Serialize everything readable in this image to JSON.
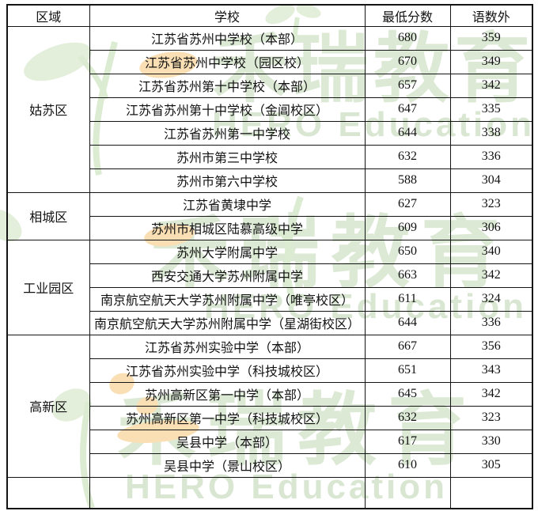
{
  "chart_data": {
    "type": "table",
    "columns": [
      "区域",
      "学校",
      "最低分数",
      "语数外"
    ],
    "groups": [
      {
        "region": "姑苏区",
        "rows": [
          [
            "江苏省苏州中学校（本部）",
            "680",
            "359"
          ],
          [
            "江苏省苏州中学校（园区校）",
            "670",
            "349"
          ],
          [
            "江苏省苏州第十中学校（本部）",
            "657",
            "342"
          ],
          [
            "江苏省苏州第十中学校（金阊校区）",
            "647",
            "335"
          ],
          [
            "江苏省苏州第一中学校",
            "644",
            "338"
          ],
          [
            "苏州市第三中学校",
            "632",
            "336"
          ],
          [
            "苏州市第六中学校",
            "588",
            "304"
          ]
        ]
      },
      {
        "region": "相城区",
        "rows": [
          [
            "江苏省黄埭中学",
            "627",
            "323"
          ],
          [
            "苏州市相城区陆慕高级中学",
            "609",
            "306"
          ]
        ]
      },
      {
        "region": "工业园区",
        "rows": [
          [
            "苏州大学附属中学",
            "650",
            "340"
          ],
          [
            "西安交通大学苏州附属中学",
            "663",
            "342"
          ],
          [
            "南京航空航天大学苏州附属中学（唯亭校区）",
            "611",
            "324"
          ],
          [
            "南京航空航天大学苏州附属中学（星湖街校区）",
            "644",
            "336"
          ]
        ]
      },
      {
        "region": "高新区",
        "rows": [
          [
            "江苏省苏州实验中学（本部）",
            "667",
            "356"
          ],
          [
            "江苏省苏州实验中学（科技城校区）",
            "651",
            "343"
          ],
          [
            "苏州高新区第一中学（本部）",
            "645",
            "342"
          ],
          [
            "苏州高新区第一中学（科技城校区）",
            "632",
            "323"
          ],
          [
            "吴县中学（本部）",
            "617",
            "330"
          ],
          [
            "吴县中学（景山校区）",
            "610",
            "305"
          ]
        ]
      }
    ]
  },
  "watermark": {
    "brand_cn": "禾瑞教育",
    "brand_en": "HERO Education",
    "green": "#dce9d5",
    "orange": "#fadfb4"
  }
}
